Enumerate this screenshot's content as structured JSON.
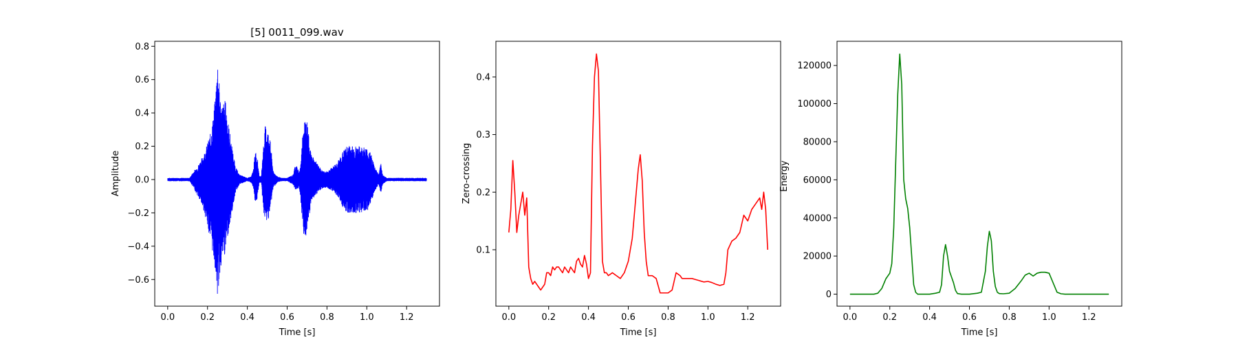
{
  "chart_data": [
    {
      "type": "line",
      "title": "[5] 0011_099.wav",
      "xlabel": "Time [s]",
      "ylabel": "Amplitude",
      "xlim": [
        -0.065,
        1.365
      ],
      "ylim": [
        -0.76,
        0.83
      ],
      "xticks": [
        "0.0",
        "0.2",
        "0.4",
        "0.6",
        "0.8",
        "1.0",
        "1.2"
      ],
      "yticks": [
        "−0.6",
        "−0.4",
        "−0.2",
        "0.0",
        "0.2",
        "0.4",
        "0.6",
        "0.8"
      ],
      "color": "#0000ff",
      "grid": false,
      "series": [
        {
          "style": "waveform",
          "duration": 1.3,
          "envelope_times": [
            0.0,
            0.11,
            0.13,
            0.15,
            0.18,
            0.2,
            0.22,
            0.24,
            0.25,
            0.26,
            0.27,
            0.29,
            0.3,
            0.32,
            0.34,
            0.36,
            0.38,
            0.4,
            0.42,
            0.43,
            0.44,
            0.45,
            0.46,
            0.47,
            0.48,
            0.49,
            0.5,
            0.51,
            0.52,
            0.53,
            0.55,
            0.57,
            0.6,
            0.63,
            0.64,
            0.65,
            0.66,
            0.67,
            0.68,
            0.69,
            0.7,
            0.71,
            0.72,
            0.74,
            0.76,
            0.78,
            0.8,
            0.83,
            0.86,
            0.88,
            0.9,
            0.92,
            0.95,
            0.98,
            1.0,
            1.02,
            1.04,
            1.06,
            1.07,
            1.08,
            1.09,
            1.1,
            1.3
          ],
          "envelope_max": [
            0.01,
            0.01,
            0.05,
            0.08,
            0.15,
            0.22,
            0.3,
            0.5,
            0.76,
            0.55,
            0.45,
            0.48,
            0.38,
            0.22,
            0.08,
            0.03,
            0.02,
            0.01,
            0.02,
            0.06,
            0.18,
            0.14,
            0.02,
            0.02,
            0.2,
            0.33,
            0.3,
            0.28,
            0.18,
            0.05,
            0.02,
            0.01,
            0.01,
            0.03,
            0.09,
            0.08,
            0.04,
            0.12,
            0.34,
            0.38,
            0.35,
            0.25,
            0.15,
            0.12,
            0.08,
            0.05,
            0.05,
            0.08,
            0.12,
            0.17,
            0.2,
            0.21,
            0.2,
            0.2,
            0.19,
            0.16,
            0.08,
            0.03,
            0.1,
            0.03,
            0.02,
            0.01,
            0.01
          ],
          "envelope_min": [
            -0.01,
            -0.01,
            -0.05,
            -0.1,
            -0.18,
            -0.28,
            -0.4,
            -0.55,
            -0.72,
            -0.6,
            -0.5,
            -0.45,
            -0.35,
            -0.22,
            -0.08,
            -0.03,
            -0.02,
            -0.01,
            -0.02,
            -0.05,
            -0.14,
            -0.12,
            -0.02,
            -0.02,
            -0.18,
            -0.26,
            -0.25,
            -0.22,
            -0.14,
            -0.05,
            -0.02,
            -0.01,
            -0.01,
            -0.03,
            -0.06,
            -0.06,
            -0.05,
            -0.15,
            -0.32,
            -0.36,
            -0.33,
            -0.24,
            -0.14,
            -0.1,
            -0.07,
            -0.05,
            -0.05,
            -0.07,
            -0.11,
            -0.17,
            -0.2,
            -0.21,
            -0.2,
            -0.2,
            -0.19,
            -0.16,
            -0.07,
            -0.03,
            -0.08,
            -0.03,
            -0.02,
            -0.01,
            -0.01
          ]
        }
      ]
    },
    {
      "type": "line",
      "title": "",
      "xlabel": "Time [s]",
      "ylabel": "Zero-crossing",
      "xlim": [
        -0.065,
        1.365
      ],
      "ylim": [
        0.002,
        0.462
      ],
      "xticks": [
        "0.0",
        "0.2",
        "0.4",
        "0.6",
        "0.8",
        "1.0",
        "1.2"
      ],
      "yticks": [
        "0.1",
        "0.2",
        "0.3",
        "0.4"
      ],
      "color": "#ff0000",
      "grid": false,
      "series": [
        {
          "style": "line",
          "x": [
            0.0,
            0.01,
            0.02,
            0.03,
            0.04,
            0.05,
            0.06,
            0.07,
            0.08,
            0.09,
            0.1,
            0.11,
            0.12,
            0.13,
            0.14,
            0.15,
            0.16,
            0.17,
            0.18,
            0.19,
            0.2,
            0.21,
            0.22,
            0.23,
            0.24,
            0.25,
            0.26,
            0.27,
            0.28,
            0.29,
            0.3,
            0.31,
            0.32,
            0.33,
            0.34,
            0.35,
            0.36,
            0.37,
            0.38,
            0.39,
            0.4,
            0.41,
            0.42,
            0.43,
            0.44,
            0.45,
            0.46,
            0.47,
            0.48,
            0.49,
            0.5,
            0.52,
            0.54,
            0.56,
            0.58,
            0.6,
            0.61,
            0.62,
            0.63,
            0.64,
            0.65,
            0.66,
            0.67,
            0.68,
            0.69,
            0.7,
            0.72,
            0.74,
            0.76,
            0.78,
            0.8,
            0.82,
            0.84,
            0.86,
            0.87,
            0.88,
            0.9,
            0.92,
            0.94,
            0.96,
            0.98,
            1.0,
            1.02,
            1.04,
            1.06,
            1.08,
            1.09,
            1.1,
            1.12,
            1.14,
            1.16,
            1.18,
            1.2,
            1.22,
            1.24,
            1.26,
            1.27,
            1.28,
            1.29,
            1.3
          ],
          "y": [
            0.13,
            0.17,
            0.255,
            0.2,
            0.13,
            0.16,
            0.18,
            0.2,
            0.16,
            0.19,
            0.07,
            0.05,
            0.04,
            0.045,
            0.04,
            0.035,
            0.03,
            0.035,
            0.04,
            0.06,
            0.06,
            0.055,
            0.07,
            0.065,
            0.07,
            0.07,
            0.065,
            0.06,
            0.07,
            0.065,
            0.06,
            0.07,
            0.065,
            0.06,
            0.08,
            0.085,
            0.075,
            0.07,
            0.09,
            0.075,
            0.05,
            0.06,
            0.28,
            0.4,
            0.44,
            0.41,
            0.25,
            0.08,
            0.06,
            0.06,
            0.055,
            0.06,
            0.055,
            0.05,
            0.06,
            0.08,
            0.1,
            0.12,
            0.16,
            0.2,
            0.24,
            0.265,
            0.22,
            0.13,
            0.08,
            0.055,
            0.055,
            0.05,
            0.025,
            0.025,
            0.025,
            0.03,
            0.06,
            0.055,
            0.05,
            0.05,
            0.05,
            0.05,
            0.048,
            0.046,
            0.044,
            0.045,
            0.043,
            0.04,
            0.038,
            0.04,
            0.06,
            0.1,
            0.115,
            0.12,
            0.13,
            0.16,
            0.15,
            0.17,
            0.18,
            0.19,
            0.17,
            0.2,
            0.17,
            0.1
          ]
        }
      ]
    },
    {
      "type": "line",
      "title": "",
      "xlabel": "Time [s]",
      "ylabel": "Energy",
      "xlim": [
        -0.065,
        1.365
      ],
      "ylim": [
        -6300,
        132700
      ],
      "xticks": [
        "0.0",
        "0.2",
        "0.4",
        "0.6",
        "0.8",
        "1.0",
        "1.2"
      ],
      "yticks": [
        "0",
        "20000",
        "40000",
        "60000",
        "80000",
        "100000",
        "120000"
      ],
      "color": "#008000",
      "grid": false,
      "series": [
        {
          "style": "line",
          "x": [
            0.0,
            0.12,
            0.14,
            0.16,
            0.18,
            0.2,
            0.21,
            0.22,
            0.23,
            0.24,
            0.25,
            0.26,
            0.27,
            0.28,
            0.29,
            0.3,
            0.31,
            0.32,
            0.33,
            0.34,
            0.35,
            0.37,
            0.4,
            0.43,
            0.45,
            0.46,
            0.47,
            0.48,
            0.49,
            0.5,
            0.51,
            0.52,
            0.53,
            0.54,
            0.56,
            0.6,
            0.64,
            0.66,
            0.68,
            0.69,
            0.7,
            0.71,
            0.72,
            0.73,
            0.74,
            0.75,
            0.77,
            0.8,
            0.83,
            0.86,
            0.88,
            0.9,
            0.92,
            0.94,
            0.96,
            0.98,
            1.0,
            1.02,
            1.04,
            1.06,
            1.08,
            1.1,
            1.3
          ],
          "y": [
            0,
            0,
            500,
            3000,
            8000,
            11000,
            16000,
            35000,
            70000,
            105000,
            126000,
            110000,
            60000,
            50000,
            45000,
            35000,
            20000,
            5000,
            1000,
            0,
            0,
            0,
            0,
            500,
            1000,
            5000,
            20000,
            26000,
            20000,
            12000,
            9000,
            6000,
            2000,
            300,
            0,
            0,
            500,
            1000,
            12000,
            25000,
            33000,
            28000,
            12000,
            4000,
            1000,
            300,
            200,
            500,
            3000,
            7000,
            10000,
            11000,
            9500,
            11000,
            11500,
            11500,
            11000,
            6000,
            1000,
            200,
            0,
            0,
            0
          ]
        }
      ]
    }
  ]
}
